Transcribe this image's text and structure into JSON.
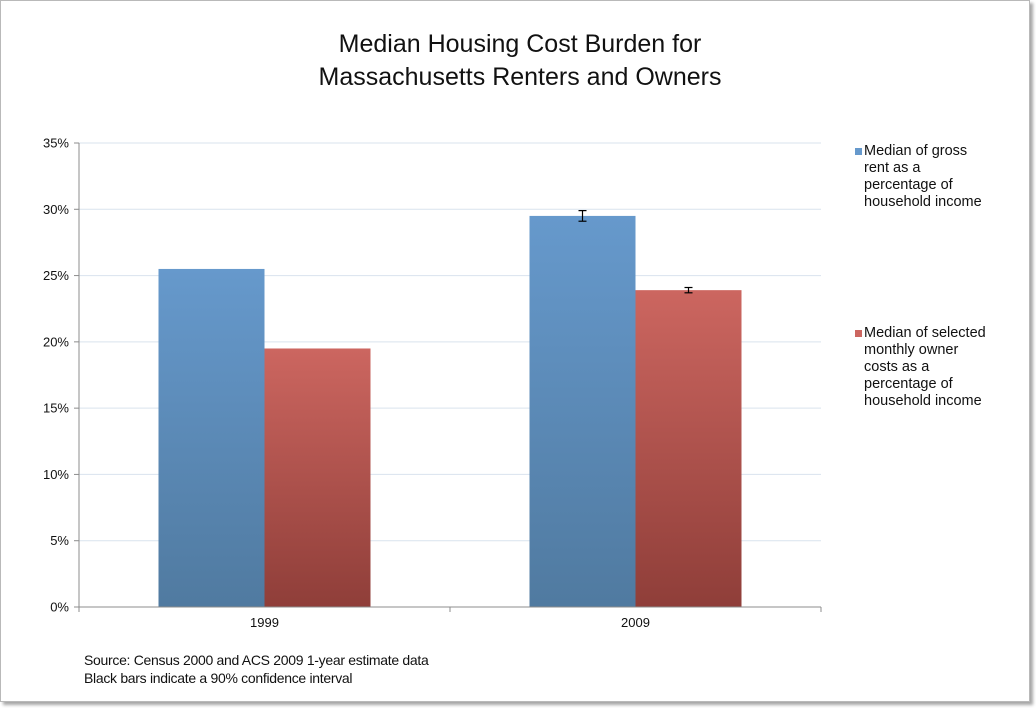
{
  "chart_data": {
    "type": "bar",
    "title_lines": [
      "Median Housing Cost Burden for",
      "Massachusetts Renters and Owners"
    ],
    "categories": [
      "1999",
      "2009"
    ],
    "series": [
      {
        "name": "Median of gross rent as a percentage of household income",
        "legend_lines": [
          "Median of gross",
          "rent as a",
          "percentage of",
          "household income"
        ],
        "values": [
          25.5,
          29.5
        ],
        "error": [
          null,
          0.4
        ],
        "color_top": "#6699cc",
        "color_bottom": "#507aa0"
      },
      {
        "name": "Median of selected monthly owner costs as a percentage of household income",
        "legend_lines": [
          "Median of selected",
          "monthly owner",
          "costs as a",
          "percentage of",
          "household income"
        ],
        "values": [
          19.5,
          23.9
        ],
        "error": [
          null,
          0.2
        ],
        "color_top": "#cc6660",
        "color_bottom": "#8f3e39"
      }
    ],
    "yticks": [
      "0%",
      "5%",
      "10%",
      "15%",
      "20%",
      "25%",
      "30%",
      "35%"
    ],
    "ylim": [
      0,
      35
    ],
    "ystep": 5,
    "grid": true,
    "legend": "right",
    "xlabel": "",
    "ylabel": ""
  },
  "notes": {
    "source": "Source: Census 2000 and ACS 2009 1-year estimate data",
    "ci": "Black bars indicate a 90% confidence interval"
  },
  "colors": {
    "grid": "#d9e3ee",
    "axis": "#8c8c8c",
    "text": "#111111"
  }
}
